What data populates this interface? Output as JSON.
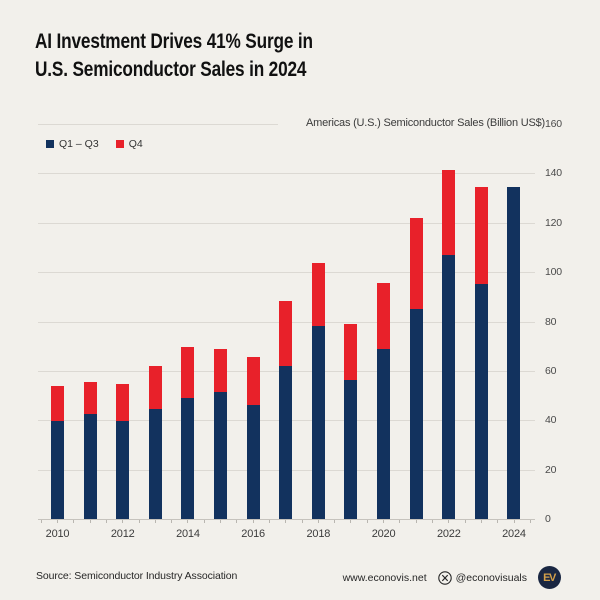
{
  "header": {
    "title_line1": "AI Investment Drives 41% Surge in",
    "title_line2": "U.S. Semiconductor Sales in 2024"
  },
  "chart_data": {
    "type": "bar",
    "stacked": true,
    "title": "AI Investment Drives 41% Surge in U.S. Semiconductor Sales in 2024",
    "axis_title": "Americas (U.S.) Semiconductor Sales (Billion US$)",
    "categories": [
      "2010",
      "2011",
      "2012",
      "2013",
      "2014",
      "2015",
      "2016",
      "2017",
      "2018",
      "2019",
      "2020",
      "2021",
      "2022",
      "2023",
      "2024"
    ],
    "series": [
      {
        "name": "Q1 – Q3",
        "color": "#12325e",
        "values": [
          39.5,
          42.5,
          39.5,
          44.5,
          49,
          51.5,
          46,
          62,
          78,
          56.5,
          69,
          85,
          107,
          95,
          134.5
        ]
      },
      {
        "name": "Q4",
        "color": "#e8212a",
        "values": [
          14.5,
          13,
          15,
          17.5,
          20.5,
          17.5,
          19.5,
          26.5,
          25.5,
          22.5,
          26.5,
          37,
          34.5,
          39.5,
          0
        ]
      }
    ],
    "ylim": [
      0,
      160
    ],
    "ytick_step": 20,
    "ytick_labels": [
      "0",
      "20",
      "40",
      "60",
      "80",
      "100",
      "120",
      "140",
      "160"
    ],
    "xtick_labels": [
      "2010",
      "2012",
      "2014",
      "2016",
      "2018",
      "2020",
      "2022",
      "2024"
    ],
    "grid": "horizontal",
    "legend_position": "top-left"
  },
  "footer": {
    "source": "Source: Semiconductor Industry Association",
    "website": "www.econovis.net",
    "social_handle": "@econovisuals",
    "logo_text": "EV"
  },
  "icons": {
    "x_social_icon": "x-circle",
    "ev_logo": "econovis-badge"
  },
  "colors": {
    "background": "#f2f0eb",
    "q1q3": "#12325e",
    "q4": "#e8212a",
    "gridline": "#dcd9d3",
    "title_text": "#111111",
    "logo_bg": "#1a2742",
    "logo_text": "#d4a04a"
  }
}
